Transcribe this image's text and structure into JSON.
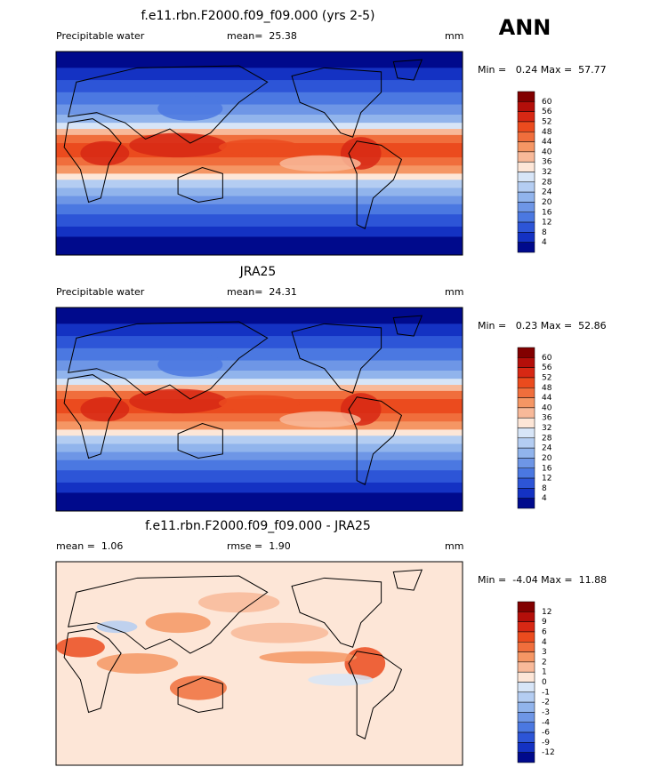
{
  "header": {
    "title": "f.e11.rbn.F2000.f09_f09.000 (yrs 2-5)",
    "season": "ANN"
  },
  "panels": [
    {
      "title": null,
      "left": "Precipitable water",
      "center": "mean=  25.38",
      "units": "mm",
      "minmax": "Min =   0.24 Max =  57.77",
      "levels": [
        60,
        56,
        52,
        48,
        44,
        40,
        36,
        32,
        28,
        24,
        20,
        16,
        12,
        8,
        4
      ],
      "colors": [
        "#820000",
        "#b40f0a",
        "#d72814",
        "#eb4b1e",
        "#f06e3c",
        "#f59664",
        "#f8b999",
        "#fde6d7",
        "#d7e5f7",
        "#b4cdf2",
        "#91b4ec",
        "#6e96e6",
        "#4b78e1",
        "#2d55d7",
        "#1432c3",
        "#000a8c"
      ]
    },
    {
      "title": "JRA25",
      "left": "Precipitable water",
      "center": "mean=  24.31",
      "units": "mm",
      "minmax": "Min =   0.23 Max =  52.86",
      "levels": [
        60,
        56,
        52,
        48,
        44,
        40,
        36,
        32,
        28,
        24,
        20,
        16,
        12,
        8,
        4
      ],
      "colors": [
        "#820000",
        "#b40f0a",
        "#d72814",
        "#eb4b1e",
        "#f06e3c",
        "#f59664",
        "#f8b999",
        "#fde6d7",
        "#d7e5f7",
        "#b4cdf2",
        "#91b4ec",
        "#6e96e6",
        "#4b78e1",
        "#2d55d7",
        "#1432c3",
        "#000a8c"
      ]
    },
    {
      "title": "f.e11.rbn.F2000.f09_f09.000 - JRA25",
      "left": "mean =  1.06",
      "center": "rmse =  1.90",
      "units": "mm",
      "minmax": "Min =  -4.04 Max =  11.88",
      "levels": [
        12,
        9,
        6,
        4,
        3,
        2,
        1,
        0,
        -1,
        -2,
        -3,
        -4,
        -6,
        -9,
        -12
      ],
      "colors": [
        "#820000",
        "#b40f0a",
        "#d72814",
        "#eb4b1e",
        "#f06e3c",
        "#f59664",
        "#f8b999",
        "#fde6d7",
        "#d7e5f7",
        "#b4cdf2",
        "#91b4ec",
        "#6e96e6",
        "#4b78e1",
        "#2d55d7",
        "#1432c3",
        "#000a8c"
      ]
    }
  ]
}
